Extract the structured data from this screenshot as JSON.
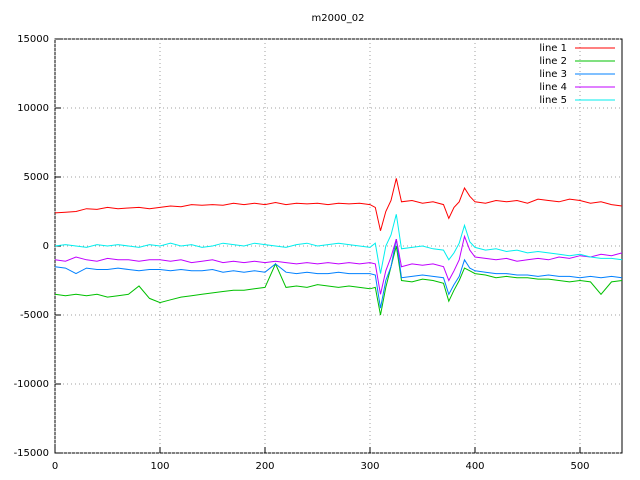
{
  "chart_data": {
    "type": "line",
    "title": "m2000_02",
    "x": [
      0,
      10,
      20,
      30,
      40,
      50,
      60,
      70,
      80,
      90,
      100,
      110,
      120,
      130,
      140,
      150,
      160,
      170,
      180,
      190,
      200,
      210,
      220,
      230,
      240,
      250,
      260,
      270,
      280,
      290,
      300,
      305,
      310,
      315,
      320,
      325,
      330,
      340,
      350,
      360,
      370,
      375,
      380,
      385,
      390,
      395,
      400,
      410,
      420,
      430,
      440,
      450,
      460,
      470,
      480,
      490,
      500,
      510,
      520,
      530,
      540
    ],
    "series": [
      {
        "name": "line 1",
        "color": "#ff0000",
        "values": [
          2400,
          2450,
          2500,
          2700,
          2650,
          2800,
          2700,
          2750,
          2800,
          2700,
          2800,
          2900,
          2850,
          3000,
          2950,
          3000,
          2950,
          3100,
          3000,
          3100,
          3000,
          3150,
          3000,
          3100,
          3050,
          3100,
          3000,
          3100,
          3050,
          3100,
          3000,
          2800,
          1100,
          2500,
          3300,
          4900,
          3200,
          3300,
          3100,
          3200,
          3000,
          2000,
          2800,
          3200,
          4200,
          3600,
          3200,
          3100,
          3300,
          3200,
          3300,
          3100,
          3400,
          3300,
          3200,
          3400,
          3300,
          3100,
          3200,
          3000,
          2900
        ]
      },
      {
        "name": "line 2",
        "color": "#00c000",
        "values": [
          -3500,
          -3600,
          -3500,
          -3600,
          -3500,
          -3700,
          -3600,
          -3500,
          -2900,
          -3800,
          -4100,
          -3900,
          -3700,
          -3600,
          -3500,
          -3400,
          -3300,
          -3200,
          -3200,
          -3100,
          -3000,
          -1300,
          -3000,
          -2900,
          -3000,
          -2800,
          -2900,
          -3000,
          -2900,
          -3000,
          -3100,
          -3000,
          -5000,
          -3000,
          -1500,
          0,
          -2500,
          -2600,
          -2400,
          -2500,
          -2700,
          -4000,
          -3200,
          -2500,
          -1600,
          -1800,
          -2000,
          -2100,
          -2300,
          -2200,
          -2300,
          -2300,
          -2400,
          -2400,
          -2500,
          -2600,
          -2500,
          -2600,
          -3500,
          -2600,
          -2500
        ]
      },
      {
        "name": "line 3",
        "color": "#0080ff",
        "values": [
          -1500,
          -1600,
          -2000,
          -1600,
          -1700,
          -1700,
          -1600,
          -1700,
          -1800,
          -1700,
          -1700,
          -1800,
          -1700,
          -1800,
          -1800,
          -1700,
          -1900,
          -1800,
          -1900,
          -1800,
          -1900,
          -1300,
          -1900,
          -2000,
          -1900,
          -2000,
          -2000,
          -1900,
          -2000,
          -2000,
          -2000,
          -2100,
          -4500,
          -2500,
          -1500,
          500,
          -2300,
          -2200,
          -2100,
          -2200,
          -2300,
          -3500,
          -2800,
          -2200,
          -1000,
          -1600,
          -1800,
          -1900,
          -2000,
          -2000,
          -2100,
          -2100,
          -2200,
          -2100,
          -2200,
          -2200,
          -2300,
          -2200,
          -2300,
          -2200,
          -2300
        ]
      },
      {
        "name": "line 4",
        "color": "#c000ff",
        "values": [
          -1000,
          -1100,
          -800,
          -1000,
          -1100,
          -900,
          -1000,
          -1000,
          -1100,
          -1000,
          -1000,
          -1100,
          -1000,
          -1200,
          -1100,
          -1000,
          -1200,
          -1100,
          -1200,
          -1100,
          -1200,
          -1100,
          -1200,
          -1300,
          -1200,
          -1300,
          -1200,
          -1300,
          -1200,
          -1300,
          -1200,
          -1300,
          -3500,
          -1800,
          -800,
          500,
          -1500,
          -1300,
          -1400,
          -1300,
          -1500,
          -2500,
          -1800,
          -1000,
          700,
          -300,
          -800,
          -900,
          -1000,
          -900,
          -1100,
          -1000,
          -900,
          -1000,
          -800,
          -900,
          -700,
          -800,
          -600,
          -700,
          -500
        ]
      },
      {
        "name": "line 5",
        "color": "#00eeee",
        "values": [
          0,
          100,
          0,
          -100,
          100,
          0,
          100,
          0,
          -100,
          100,
          0,
          200,
          0,
          100,
          -100,
          0,
          200,
          100,
          0,
          200,
          100,
          0,
          -100,
          100,
          200,
          0,
          100,
          200,
          100,
          0,
          -100,
          200,
          -2000,
          0,
          800,
          2300,
          -200,
          -100,
          0,
          -200,
          -300,
          -1000,
          -500,
          200,
          1500,
          300,
          -100,
          -300,
          -200,
          -400,
          -300,
          -500,
          -400,
          -500,
          -600,
          -700,
          -600,
          -800,
          -900,
          -900,
          -1000
        ]
      }
    ],
    "xlim": [
      0,
      540
    ],
    "ylim": [
      -15000,
      15000
    ],
    "xticks": [
      0,
      100,
      200,
      300,
      400,
      500
    ],
    "yticks": [
      -15000,
      -10000,
      -5000,
      0,
      5000,
      10000,
      15000
    ],
    "grid": true,
    "legend": "top-right"
  }
}
